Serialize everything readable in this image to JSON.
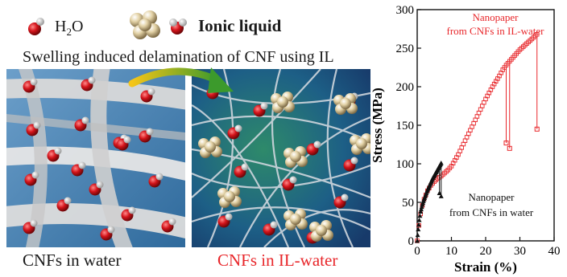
{
  "legend": {
    "water_prefix": "H",
    "water_sub": "2",
    "water_suffix": "O",
    "ionic_liquid": "Ionic liquid"
  },
  "subtitle": "Swelling induced delamination of CNF using IL",
  "captions": {
    "left": "CNFs in water",
    "right": "CNFs in IL-water"
  },
  "colors": {
    "il_red": "#e8262a",
    "water_black": "#111111",
    "panel_left_bg": "#5a8fbf",
    "panel_right_bg": "#1f5a8a",
    "arrow_start": "#3c9a2c",
    "arrow_end": "#f5c518"
  },
  "chart_data": {
    "type": "scatter",
    "xlabel": "Strain (%)",
    "ylabel": "Stress (MPa)",
    "xlim": [
      0,
      40
    ],
    "ylim": [
      0,
      300
    ],
    "xticks": [
      0,
      10,
      20,
      30,
      40
    ],
    "yticks": [
      0,
      50,
      100,
      150,
      200,
      250,
      300
    ],
    "annotations": {
      "il_water": [
        "Nanopaper",
        "from CNFs in IL-water"
      ],
      "water": [
        "Nanopaper",
        "from CNFs in water"
      ]
    },
    "series": [
      {
        "color": "#e8262a",
        "marker": "open-square",
        "x": [
          0,
          0.5,
          1,
          1.5,
          2,
          3,
          4,
          5,
          6,
          7,
          8,
          9,
          10,
          12,
          14,
          16,
          18,
          20,
          22,
          24,
          25,
          26,
          27,
          28,
          29,
          30,
          31,
          32,
          33,
          34,
          35
        ],
        "y": [
          0,
          20,
          35,
          46,
          54,
          65,
          72,
          77,
          81,
          84,
          88,
          92,
          97,
          112,
          130,
          148,
          166,
          184,
          200,
          214,
          222,
          228,
          233,
          238,
          243,
          248,
          252,
          256,
          260,
          264,
          268
        ],
        "breaks": [
          {
            "x": 26,
            "y_from": 226,
            "y_to": 127
          },
          {
            "x": 27,
            "y_from": 234,
            "y_to": 120
          },
          {
            "x": 35,
            "y_from": 267,
            "y_to": 145
          }
        ]
      },
      {
        "color": "#111111",
        "marker": "filled-triangle",
        "x": [
          0,
          0.3,
          0.6,
          1,
          1.5,
          2,
          2.5,
          3,
          3.5,
          4,
          4.5,
          5,
          5.5,
          6,
          6.5,
          7
        ],
        "y": [
          0,
          15,
          27,
          38,
          47,
          54,
          60,
          66,
          71,
          76,
          81,
          85,
          89,
          93,
          97,
          101
        ],
        "breaks": [
          {
            "x": 6.5,
            "y_from": 97,
            "y_to": 62
          },
          {
            "x": 7,
            "y_from": 101,
            "y_to": 58
          }
        ]
      }
    ]
  }
}
